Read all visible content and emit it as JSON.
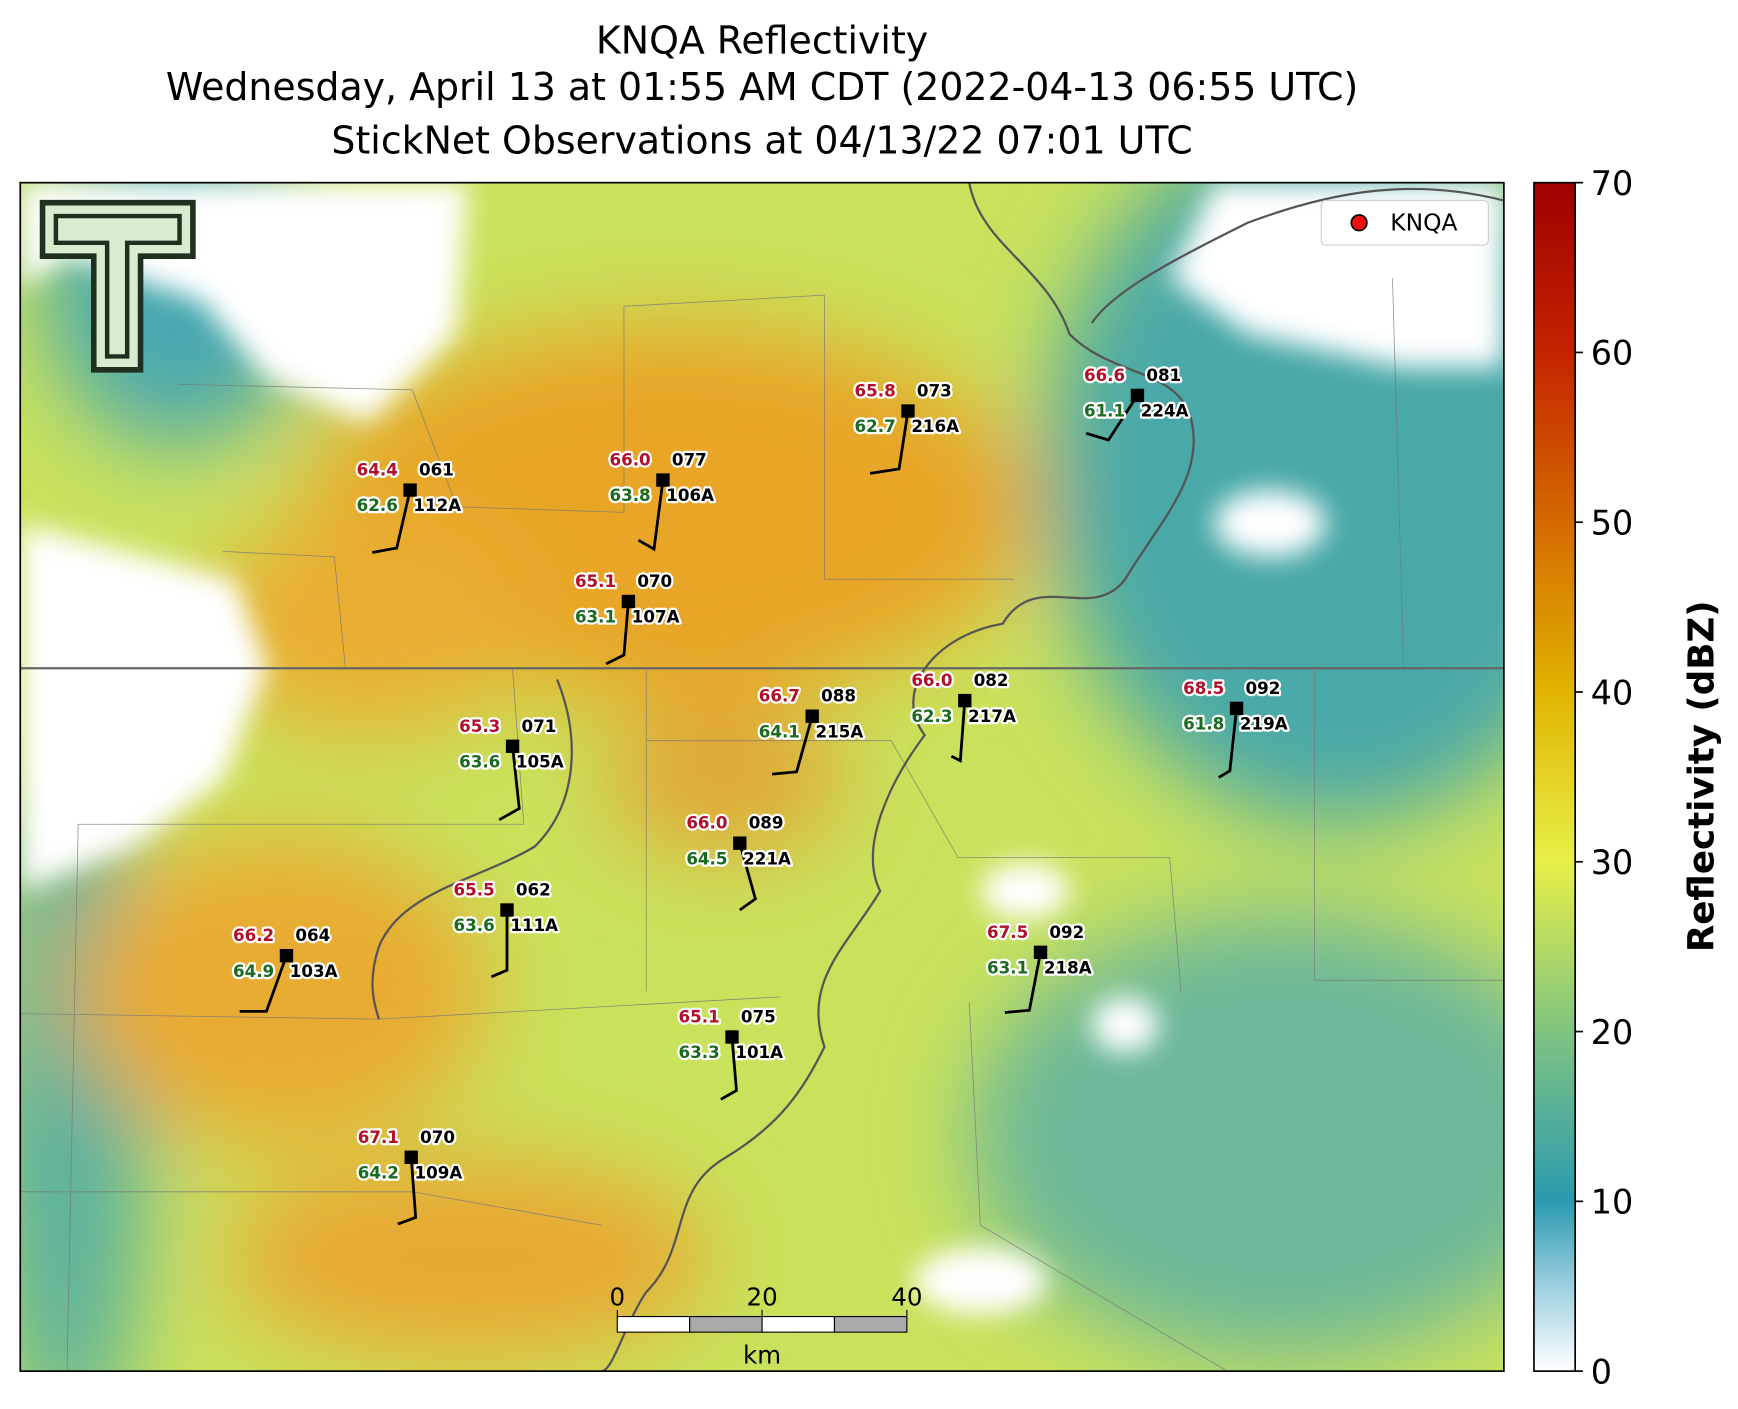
{
  "title": [
    "KNQA Reflectivity",
    "Wednesday, April 13 at 01:55 AM CDT (2022-04-13 06:55 UTC)",
    "StickNet Observations at 04/13/22 07:01 UTC"
  ],
  "legend": "KNQA",
  "stations": [
    {
      "id": "112A",
      "temp": "64.4",
      "dewpoint": "62.6",
      "code": "061"
    },
    {
      "id": "106A",
      "temp": "66.0",
      "dewpoint": "63.8",
      "code": "077"
    },
    {
      "id": "216A",
      "temp": "65.8",
      "dewpoint": "62.7",
      "code": "073"
    },
    {
      "id": "224A",
      "temp": "66.6",
      "dewpoint": "61.1",
      "code": "081"
    },
    {
      "id": "107A",
      "temp": "65.1",
      "dewpoint": "63.1",
      "code": "070"
    },
    {
      "id": "105A",
      "temp": "65.3",
      "dewpoint": "63.6",
      "code": "071"
    },
    {
      "id": "215A",
      "temp": "66.7",
      "dewpoint": "64.1",
      "code": "088"
    },
    {
      "id": "217A",
      "temp": "66.0",
      "dewpoint": "62.3",
      "code": "082"
    },
    {
      "id": "219A",
      "temp": "68.5",
      "dewpoint": "61.8",
      "code": "092"
    },
    {
      "id": "221A",
      "temp": "66.0",
      "dewpoint": "64.5",
      "code": "089"
    },
    {
      "id": "111A",
      "temp": "65.5",
      "dewpoint": "63.6",
      "code": "062"
    },
    {
      "id": "103A",
      "temp": "66.2",
      "dewpoint": "64.9",
      "code": "064"
    },
    {
      "id": "218A",
      "temp": "67.5",
      "dewpoint": "63.1",
      "code": "092"
    },
    {
      "id": "101A",
      "temp": "65.1",
      "dewpoint": "63.3",
      "code": "075"
    },
    {
      "id": "109A",
      "temp": "67.1",
      "dewpoint": "64.2",
      "code": "070"
    }
  ],
  "colorbar": {
    "label": "Reflectivity (dBZ)",
    "lim": [
      0,
      70
    ],
    "ticks": [
      0,
      10,
      20,
      30,
      40,
      50,
      60,
      70
    ]
  },
  "scale_bar": {
    "ticks": [
      0,
      20,
      40
    ],
    "unit": "km"
  }
}
